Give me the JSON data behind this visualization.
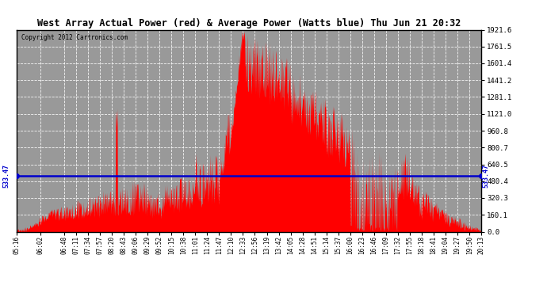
{
  "title": "West Array Actual Power (red) & Average Power (Watts blue) Thu Jun 21 20:32",
  "copyright": "Copyright 2012 Cartronics.com",
  "avg_power": 533.47,
  "ymin": 0.0,
  "ymax": 1921.6,
  "ytick_vals": [
    0.0,
    160.1,
    320.3,
    480.4,
    640.5,
    800.7,
    960.8,
    1121.0,
    1281.1,
    1441.2,
    1601.4,
    1761.5,
    1921.6
  ],
  "fill_color": "#FF0000",
  "line_color": "#0000CD",
  "bg_color": "#FFFFFF",
  "plot_bg": "#AAAAAA",
  "x_labels": [
    "05:16",
    "06:02",
    "06:48",
    "07:11",
    "07:34",
    "07:57",
    "08:20",
    "08:43",
    "09:06",
    "09:29",
    "09:52",
    "10:15",
    "10:38",
    "11:01",
    "11:24",
    "11:47",
    "12:10",
    "12:33",
    "12:56",
    "13:19",
    "13:42",
    "14:05",
    "14:28",
    "14:51",
    "15:14",
    "15:37",
    "16:00",
    "16:23",
    "16:46",
    "17:09",
    "17:32",
    "17:55",
    "18:18",
    "18:41",
    "19:04",
    "19:27",
    "19:50",
    "20:13"
  ]
}
